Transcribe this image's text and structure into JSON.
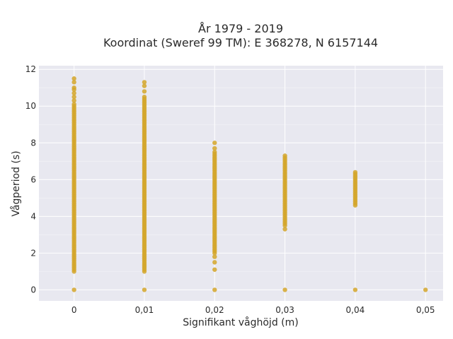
{
  "chart_data": {
    "type": "scatter",
    "title": "År 1979 - 2019",
    "subtitle": "Koordinat (Sweref 99 TM): E 368278, N 6157144",
    "xlabel": "Signifikant våghöjd (m)",
    "ylabel": "Vågperiod (s)",
    "xlim": [
      -0.005,
      0.0525
    ],
    "ylim": [
      -0.6,
      12.2
    ],
    "x_ticks": [
      0,
      0.01,
      0.02,
      0.03,
      0.04,
      0.05
    ],
    "x_tick_labels": [
      "0",
      "0,01",
      "0,02",
      "0,03",
      "0,04",
      "0,05"
    ],
    "y_ticks": [
      0,
      2,
      4,
      6,
      8,
      10,
      12
    ],
    "y_tick_labels": [
      "0",
      "2",
      "4",
      "6",
      "8",
      "10",
      "12"
    ],
    "grid": true,
    "marker_color": "#d4a62a",
    "background_color": "#e8e8f0",
    "series": [
      {
        "x": 0,
        "y_range": [
          1.0,
          10.1
        ],
        "y_extra": [
          0,
          10.3,
          10.5,
          10.7,
          10.9,
          11.0,
          11.3,
          11.5
        ]
      },
      {
        "x": 0.01,
        "y_range": [
          1.0,
          10.5
        ],
        "y_extra": [
          0,
          10.8,
          11.1,
          11.3
        ]
      },
      {
        "x": 0.02,
        "y_range": [
          2.0,
          7.5
        ],
        "y_extra": [
          0,
          1.1,
          1.5,
          1.8,
          7.7,
          8.0
        ]
      },
      {
        "x": 0.03,
        "y_range": [
          3.5,
          7.3
        ],
        "y_extra": [
          0,
          3.3
        ]
      },
      {
        "x": 0.04,
        "y_range": [
          4.6,
          6.4
        ],
        "y_extra": [
          0
        ]
      },
      {
        "x": 0.05,
        "y_range": [],
        "y_extra": [
          0
        ]
      }
    ]
  }
}
